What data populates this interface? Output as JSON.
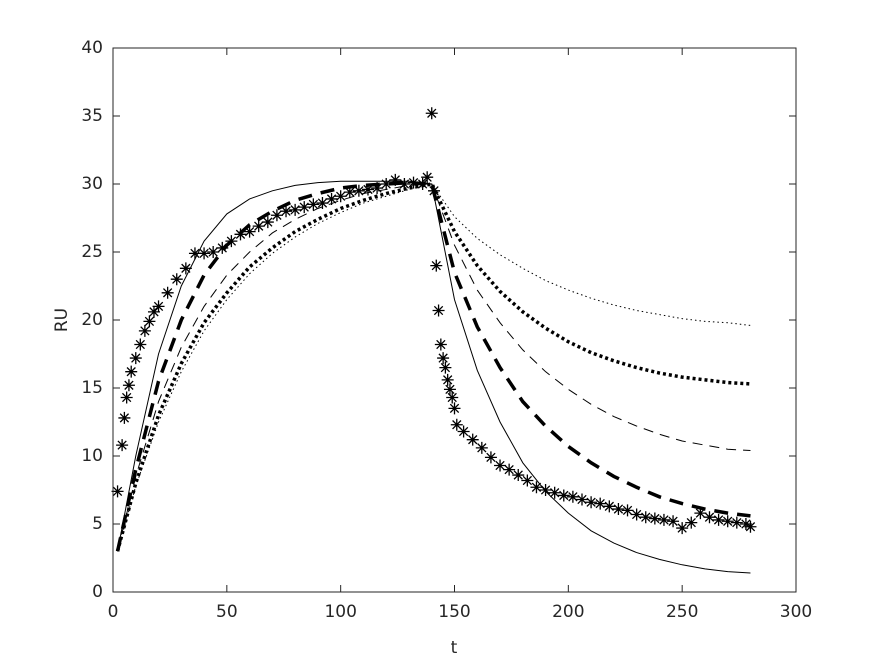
{
  "chart_data": {
    "type": "line",
    "xlabel": "t",
    "ylabel": "RU",
    "xlim": [
      0,
      300
    ],
    "ylim": [
      0,
      40
    ],
    "xticks": [
      0,
      50,
      100,
      150,
      200,
      250,
      300
    ],
    "yticks": [
      0,
      5,
      10,
      15,
      20,
      25,
      30,
      35,
      40
    ],
    "series": [
      {
        "color": "#000000",
        "marker": "*",
        "linestyle": "none",
        "x": [
          2,
          4,
          5,
          6,
          7,
          8,
          10,
          12,
          14,
          16,
          18,
          20,
          24,
          28,
          32,
          36,
          40,
          44,
          48,
          52,
          56,
          60,
          64,
          68,
          72,
          76,
          80,
          84,
          88,
          92,
          96,
          100,
          104,
          108,
          112,
          116,
          120,
          124,
          128,
          132,
          136,
          138,
          140,
          141,
          142,
          143,
          144,
          145,
          146,
          147,
          148,
          149,
          150,
          151,
          154,
          158,
          162,
          166,
          170,
          174,
          178,
          182,
          186,
          190,
          194,
          198,
          202,
          206,
          210,
          214,
          218,
          222,
          226,
          230,
          234,
          238,
          242,
          246,
          250,
          254,
          258,
          262,
          266,
          270,
          274,
          278,
          280
        ],
        "values": [
          7.4,
          10.8,
          12.8,
          14.3,
          15.2,
          16.2,
          17.2,
          18.2,
          19.2,
          19.9,
          20.6,
          21.0,
          22.0,
          23.0,
          23.8,
          24.9,
          24.9,
          25.0,
          25.3,
          25.8,
          26.3,
          26.5,
          26.9,
          27.2,
          27.7,
          28.0,
          28.1,
          28.3,
          28.5,
          28.6,
          28.9,
          29.1,
          29.4,
          29.5,
          29.6,
          29.7,
          30.0,
          30.3,
          30.0,
          30.1,
          30.0,
          30.5,
          35.2,
          29.5,
          24.0,
          20.7,
          18.2,
          17.2,
          16.5,
          15.6,
          14.9,
          14.3,
          13.5,
          12.3,
          11.8,
          11.2,
          10.6,
          9.9,
          9.3,
          9.0,
          8.6,
          8.2,
          7.7,
          7.5,
          7.3,
          7.1,
          7.0,
          6.8,
          6.6,
          6.5,
          6.3,
          6.1,
          6.0,
          5.7,
          5.5,
          5.4,
          5.3,
          5.2,
          4.7,
          5.1,
          5.8,
          5.5,
          5.3,
          5.2,
          5.1,
          5.0,
          4.8
        ]
      },
      {
        "color": "#000000",
        "linestyle": "solid",
        "linewidth": 1,
        "x": [
          2,
          10,
          20,
          30,
          40,
          50,
          60,
          70,
          80,
          90,
          100,
          110,
          120,
          130,
          140,
          150,
          160,
          170,
          180,
          190,
          200,
          210,
          220,
          230,
          240,
          250,
          260,
          270,
          280
        ],
        "values": [
          3,
          10,
          17.5,
          22.5,
          25.8,
          27.8,
          28.9,
          29.5,
          29.9,
          30.1,
          30.2,
          30.2,
          30.2,
          30.2,
          30.0,
          21.5,
          16.3,
          12.5,
          9.5,
          7.4,
          5.8,
          4.5,
          3.6,
          2.9,
          2.4,
          2.0,
          1.7,
          1.5,
          1.4
        ]
      },
      {
        "color": "#000000",
        "linestyle": "dashed",
        "linewidth": 3.5,
        "x": [
          2,
          10,
          20,
          30,
          40,
          50,
          60,
          70,
          80,
          90,
          100,
          110,
          120,
          130,
          140,
          150,
          160,
          170,
          180,
          190,
          200,
          210,
          220,
          230,
          240,
          250,
          260,
          270,
          280
        ],
        "values": [
          3,
          9,
          15.5,
          20,
          23.3,
          25.5,
          27,
          28,
          28.8,
          29.3,
          29.7,
          29.9,
          30.0,
          30.1,
          30,
          23.5,
          19.5,
          16.5,
          14,
          12.2,
          10.7,
          9.5,
          8.5,
          7.7,
          7.0,
          6.5,
          6.1,
          5.8,
          5.6
        ]
      },
      {
        "color": "#000000",
        "linestyle": "dashed",
        "linewidth": 1,
        "x": [
          2,
          10,
          20,
          30,
          40,
          50,
          60,
          70,
          80,
          90,
          100,
          110,
          120,
          130,
          140,
          150,
          160,
          170,
          180,
          190,
          200,
          210,
          220,
          230,
          240,
          250,
          260,
          270,
          280
        ],
        "values": [
          3,
          8.5,
          14,
          18,
          21,
          23.3,
          25,
          26.4,
          27.4,
          28.2,
          28.8,
          29.3,
          29.6,
          29.9,
          30,
          25.5,
          22.2,
          19.8,
          17.8,
          16.2,
          14.9,
          13.8,
          12.9,
          12.2,
          11.6,
          11.1,
          10.8,
          10.5,
          10.4
        ]
      },
      {
        "color": "#000000",
        "linestyle": "dotted",
        "linewidth": 3.5,
        "x": [
          2,
          10,
          20,
          30,
          40,
          50,
          60,
          70,
          80,
          90,
          100,
          110,
          120,
          130,
          140,
          150,
          160,
          170,
          180,
          190,
          200,
          210,
          220,
          230,
          240,
          250,
          260,
          270,
          280
        ],
        "values": [
          3,
          8,
          13,
          16.8,
          19.8,
          22,
          23.9,
          25.3,
          26.5,
          27.4,
          28.2,
          28.8,
          29.3,
          29.7,
          30,
          26.5,
          24,
          22.1,
          20.6,
          19.4,
          18.4,
          17.6,
          17.0,
          16.5,
          16.1,
          15.8,
          15.6,
          15.4,
          15.3
        ]
      },
      {
        "color": "#000000",
        "linestyle": "dotted",
        "linewidth": 1,
        "x": [
          2,
          10,
          20,
          30,
          40,
          50,
          60,
          70,
          80,
          90,
          100,
          110,
          120,
          130,
          140,
          150,
          160,
          170,
          180,
          190,
          200,
          210,
          220,
          230,
          240,
          250,
          260,
          270,
          280
        ],
        "values": [
          3,
          7.8,
          12.5,
          16.2,
          19.2,
          21.5,
          23.4,
          24.9,
          26.1,
          27.1,
          27.9,
          28.6,
          29.1,
          29.6,
          30,
          27.6,
          26,
          24.8,
          23.8,
          22.9,
          22.2,
          21.6,
          21.1,
          20.7,
          20.4,
          20.1,
          19.9,
          19.8,
          19.6
        ]
      }
    ]
  }
}
